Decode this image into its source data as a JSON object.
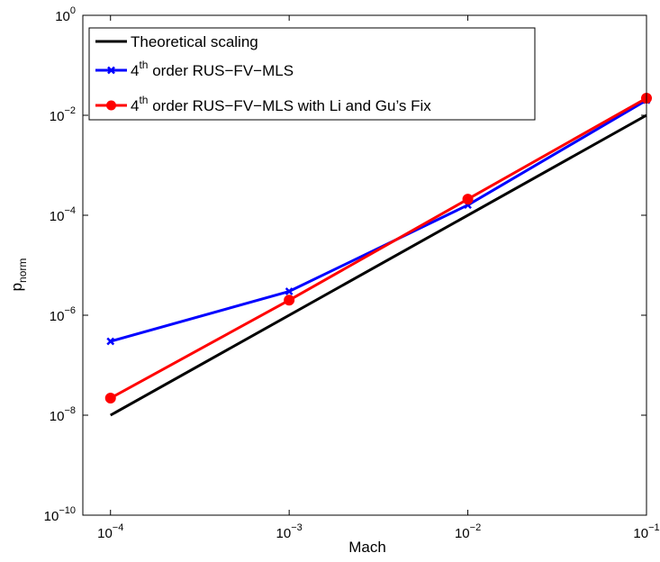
{
  "chart_data": {
    "type": "line",
    "xscale": "log",
    "yscale": "log",
    "xlim": [
      7e-05,
      0.1
    ],
    "ylim": [
      1e-10,
      1
    ],
    "xlabel": "Mach",
    "ylabel_main": "p",
    "ylabel_sub": "norm",
    "x_ticks": [
      {
        "value": 0.0001,
        "base": "10",
        "exp": "−4"
      },
      {
        "value": 0.001,
        "base": "10",
        "exp": "−3"
      },
      {
        "value": 0.01,
        "base": "10",
        "exp": "−2"
      },
      {
        "value": 0.1,
        "base": "10",
        "exp": "−1"
      }
    ],
    "y_ticks": [
      {
        "value": 1e-10,
        "base": "10",
        "exp": "−10"
      },
      {
        "value": 1e-08,
        "base": "10",
        "exp": "−8"
      },
      {
        "value": 1e-06,
        "base": "10",
        "exp": "−6"
      },
      {
        "value": 0.0001,
        "base": "10",
        "exp": "−4"
      },
      {
        "value": 0.01,
        "base": "10",
        "exp": "−2"
      },
      {
        "value": 1,
        "base": "10",
        "exp": "0"
      }
    ],
    "legend_position": "top-left",
    "series": [
      {
        "name": "Theoretical scaling",
        "legend_parts": [
          "Theoretical scaling"
        ],
        "color": "#000000",
        "marker": "none",
        "x": [
          0.0001,
          0.1
        ],
        "y": [
          1e-08,
          0.01
        ]
      },
      {
        "name": "4th order RUS−FV−MLS",
        "legend_parts": [
          "4",
          "th",
          " order RUS−FV−MLS"
        ],
        "color": "#0000ff",
        "marker": "x",
        "x": [
          0.0001,
          0.001,
          0.01,
          0.1
        ],
        "y": [
          3e-07,
          3e-06,
          0.00016,
          0.02
        ]
      },
      {
        "name": "4th order RUS−FV−MLS with Li and Gu's Fix",
        "legend_parts": [
          "4",
          "th",
          " order RUS−FV−MLS with Li and Gu’s Fix"
        ],
        "color": "#ff0000",
        "marker": "o",
        "x": [
          0.0001,
          0.001,
          0.01,
          0.1
        ],
        "y": [
          2.2e-08,
          2e-06,
          0.00021,
          0.022
        ]
      }
    ]
  }
}
